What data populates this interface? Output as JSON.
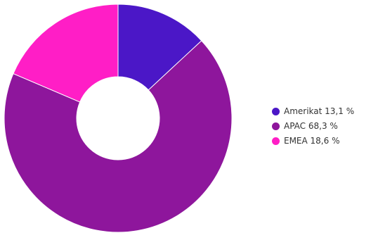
{
  "chart_data": {
    "type": "pie",
    "subtype": "donut",
    "categories": [
      "Amerikat",
      "APAC",
      "EMEA"
    ],
    "values": [
      13.1,
      68.3,
      18.6
    ],
    "colors": [
      "#4b17c7",
      "#8e169c",
      "#ff1ec6"
    ],
    "legend_labels": [
      "Amerikat 13,1 %",
      "APAC 68,3 %",
      "EMEA 18,6 %"
    ],
    "legend": "right",
    "start_angle_deg": 0,
    "direction": "clockwise"
  }
}
